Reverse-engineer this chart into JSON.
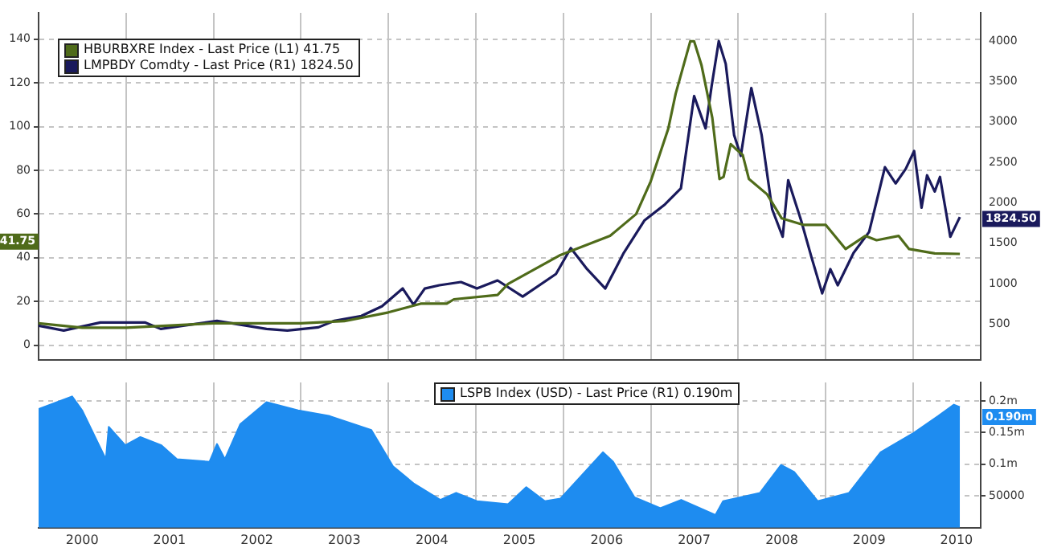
{
  "chart_data": [
    {
      "type": "line",
      "legend": "top left",
      "grid": true,
      "tick_labels": "y",
      "marker": "none",
      "xlim": [
        "2000-01-01",
        "2010-10-10"
      ],
      "xticks": [
        {
          "value": "2001-01-01",
          "label": null
        },
        {
          "value": "2002-01-01",
          "label": null
        },
        {
          "value": "2003-01-01",
          "label": null
        },
        {
          "value": "2004-01-01",
          "label": null
        },
        {
          "value": "2005-01-01",
          "label": null
        },
        {
          "value": "2006-01-01",
          "label": null
        },
        {
          "value": "2007-01-01",
          "label": null
        },
        {
          "value": "2008-01-01",
          "label": null
        },
        {
          "value": "2009-01-01",
          "label": null
        },
        {
          "value": "2010-01-01",
          "label": null
        }
      ],
      "ylim": [
        -6.6,
        152
      ],
      "yticks": [
        0,
        20,
        40,
        60,
        80,
        100,
        120,
        140
      ],
      "y2lim": [
        60,
        4350
      ],
      "y2ticks": [
        500,
        1000,
        1500,
        2000,
        2500,
        3000,
        3500,
        4000
      ],
      "annotations": [
        "41.75",
        "1824.50"
      ],
      "series": [
        {
          "name": "HBURBXRE Index - Last Price (L1)  41.75",
          "color": "#4f6b1a",
          "x": [
            "2000-01-01",
            "2000-07-01",
            "2001-01-01",
            "2002-01-01",
            "2003-01-01",
            "2003-07-01",
            "2004-01-01",
            "2004-05-15",
            "2004-09-01",
            "2004-10-01",
            "2005-04-01",
            "2005-05-15",
            "2005-12-15",
            "2006-07-15",
            "2006-11-01",
            "2007-01-01",
            "2007-03-15",
            "2007-04-15",
            "2007-06-15",
            "2007-07-01",
            "2007-08-01",
            "2007-09-15",
            "2007-10-15",
            "2007-11-01",
            "2007-12-01",
            "2007-12-20",
            "2008-01-20",
            "2008-02-15",
            "2008-05-01",
            "2008-07-01",
            "2008-10-01",
            "2009-01-01",
            "2009-03-25",
            "2009-06-15",
            "2009-08-01",
            "2009-11-01",
            "2009-12-15",
            "2010-04-01",
            "2010-07-15"
          ],
          "values": [
            10,
            8,
            8,
            10,
            10,
            11,
            15,
            19,
            19,
            21,
            23,
            28,
            41,
            50,
            60,
            75,
            99,
            115,
            139,
            139,
            128,
            104,
            76,
            77,
            92,
            90,
            87,
            76,
            69,
            58,
            55,
            55,
            44,
            50,
            48,
            50,
            44,
            42,
            41.75
          ]
        },
        {
          "name": "LMPBDY Comdty - Last Price (R1)  1824.50",
          "color": "#1a1a5c",
          "axis": "y2",
          "x": [
            "2000-01-01",
            "2000-04-15",
            "2000-09-15",
            "2001-03-20",
            "2001-05-25",
            "2002-01-15",
            "2002-08-10",
            "2002-11-05",
            "2003-03-15",
            "2003-05-20",
            "2003-09-10",
            "2003-12-05",
            "2004-03-01",
            "2004-04-15",
            "2004-06-01",
            "2004-08-01",
            "2004-10-30",
            "2005-01-05",
            "2005-04-01",
            "2005-07-15",
            "2005-12-01",
            "2006-02-01",
            "2006-04-10",
            "2006-06-25",
            "2006-09-10",
            "2006-12-05",
            "2007-03-01",
            "2007-05-07",
            "2007-07-01",
            "2007-08-18",
            "2007-09-12",
            "2007-10-12",
            "2007-11-10",
            "2007-12-15",
            "2008-01-12",
            "2008-02-25",
            "2008-04-08",
            "2008-05-22",
            "2008-07-05",
            "2008-07-28",
            "2008-09-20",
            "2008-11-03",
            "2008-12-17",
            "2009-01-20",
            "2009-02-20",
            "2009-04-27",
            "2009-07-01",
            "2009-09-05",
            "2009-10-20",
            "2009-12-01",
            "2010-01-05",
            "2010-02-05",
            "2010-02-28",
            "2010-04-01",
            "2010-04-23",
            "2010-06-05",
            "2010-06-28",
            "2010-07-15"
          ],
          "values": [
            480,
            420,
            520,
            520,
            440,
            540,
            440,
            420,
            460,
            540,
            600,
            720,
            940,
            740,
            940,
            980,
            1020,
            940,
            1040,
            840,
            1120,
            1440,
            1180,
            940,
            1380,
            1780,
            1980,
            2180,
            3320,
            2920,
            3440,
            4000,
            3720,
            2840,
            2580,
            3420,
            2840,
            1920,
            1580,
            2280,
            1780,
            1320,
            880,
            1180,
            980,
            1380,
            1640,
            2440,
            2240,
            2420,
            2640,
            1940,
            2340,
            2140,
            2320,
            1580,
            1720,
            1824.5
          ]
        }
      ]
    },
    {
      "type": "area",
      "legend": "top",
      "grid": true,
      "marker": "none",
      "xlim": [
        "2000-01-01",
        "2010-10-10"
      ],
      "xticks": [
        {
          "value": "2000-07-01",
          "label": "2000"
        },
        {
          "value": "2001-01-01",
          "label": null
        },
        {
          "value": "2001-07-01",
          "label": "2001"
        },
        {
          "value": "2002-01-01",
          "label": null
        },
        {
          "value": "2002-07-01",
          "label": "2002"
        },
        {
          "value": "2003-01-01",
          "label": null
        },
        {
          "value": "2003-07-01",
          "label": "2003"
        },
        {
          "value": "2004-01-01",
          "label": null
        },
        {
          "value": "2004-07-01",
          "label": "2004"
        },
        {
          "value": "2005-01-01",
          "label": null
        },
        {
          "value": "2005-07-01",
          "label": "2005"
        },
        {
          "value": "2006-01-01",
          "label": null
        },
        {
          "value": "2006-07-01",
          "label": "2006"
        },
        {
          "value": "2007-01-01",
          "label": null
        },
        {
          "value": "2007-07-01",
          "label": "2007"
        },
        {
          "value": "2008-01-01",
          "label": null
        },
        {
          "value": "2008-07-01",
          "label": "2008"
        },
        {
          "value": "2009-01-01",
          "label": null
        },
        {
          "value": "2009-07-01",
          "label": "2009"
        },
        {
          "value": "2010-01-01",
          "label": null
        },
        {
          "value": "2010-07-01",
          "label": "2010"
        }
      ],
      "y2lim": [
        0,
        229000
      ],
      "y2ticks": [
        {
          "value": 50000,
          "label": "50000"
        },
        {
          "value": 100000,
          "label": "0.1m"
        },
        {
          "value": 150000,
          "label": "0.15m"
        },
        {
          "value": 200000,
          "label": "0.2m"
        }
      ],
      "annotations": [
        "0.190m"
      ],
      "series": [
        {
          "name": "LSPB Index (USD) - Last Price (R1)  0.190m",
          "color": "#1e8cf0",
          "axis": "y2",
          "x": [
            "2000-01-01",
            "2000-05-20",
            "2000-07-01",
            "2000-09-15",
            "2000-10-08",
            "2000-10-20",
            "2000-12-28",
            "2001-03-01",
            "2001-05-28",
            "2001-08-01",
            "2001-12-15",
            "2002-01-15",
            "2002-02-17",
            "2002-04-22",
            "2002-08-10",
            "2002-12-20",
            "2003-05-01",
            "2003-10-22",
            "2004-01-20",
            "2004-04-15",
            "2004-08-05",
            "2004-10-10",
            "2005-01-05",
            "2005-05-15",
            "2005-07-30",
            "2005-10-15",
            "2005-12-20",
            "2006-06-15",
            "2006-07-28",
            "2006-10-25",
            "2007-02-10",
            "2007-05-08",
            "2007-09-28",
            "2007-10-30",
            "2008-04-01",
            "2008-06-28",
            "2008-08-22",
            "2008-11-28",
            "2009-04-08",
            "2009-08-18",
            "2009-12-28",
            "2010-04-15",
            "2010-06-20",
            "2010-07-15"
          ],
          "values": [
            187000,
            207000,
            185000,
            126000,
            108000,
            159000,
            130000,
            143000,
            130000,
            108000,
            104000,
            132000,
            108000,
            163000,
            198000,
            185000,
            176000,
            154000,
            97000,
            70000,
            44000,
            55000,
            42000,
            37000,
            64000,
            42000,
            46000,
            119000,
            104000,
            48000,
            31000,
            44000,
            20000,
            42000,
            55000,
            99000,
            88000,
            42000,
            55000,
            119000,
            148000,
            176000,
            194000,
            190000
          ]
        }
      ]
    }
  ]
}
